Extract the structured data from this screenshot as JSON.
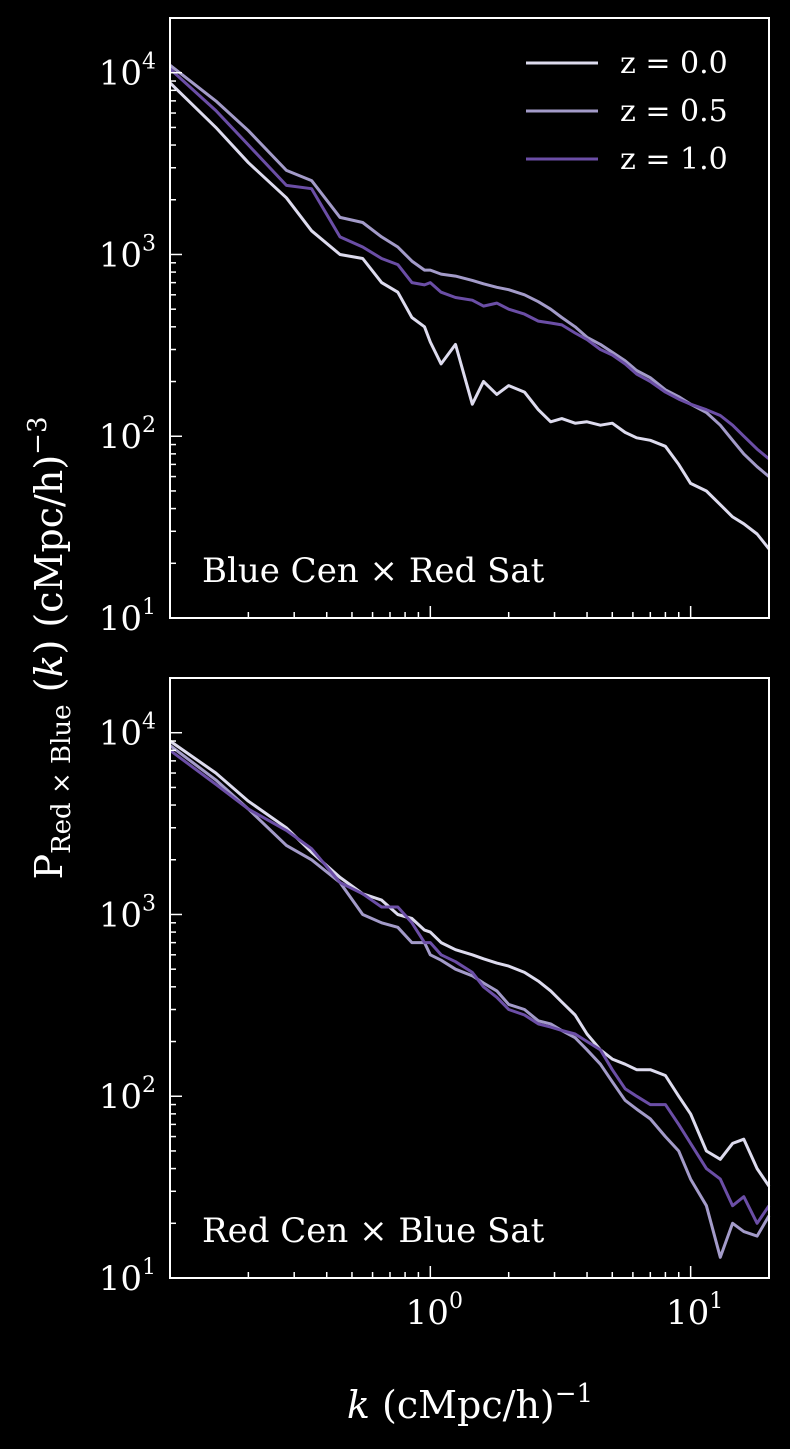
{
  "chart_data": [
    {
      "type": "line",
      "annotation": "Blue Cen × Red Sat",
      "xscale": "log",
      "yscale": "log",
      "xlim": [
        0.1,
        20
      ],
      "ylim": [
        10,
        20000
      ],
      "legend_placement": "top-right",
      "series": [
        {
          "name": "z = 0.0",
          "color": "#dddbee",
          "x": [
            0.1,
            0.15,
            0.2,
            0.28,
            0.35,
            0.45,
            0.55,
            0.65,
            0.75,
            0.85,
            0.95,
            1.0,
            1.1,
            1.25,
            1.45,
            1.6,
            1.8,
            2.0,
            2.3,
            2.6,
            2.9,
            3.2,
            3.6,
            4.0,
            4.5,
            5.0,
            5.6,
            6.2,
            7.0,
            8.0,
            9.0,
            10.0,
            11.5,
            13.0,
            14.5,
            16.0,
            18.0,
            20.0
          ],
          "y": [
            8800,
            5000,
            3200,
            2050,
            1350,
            1000,
            950,
            700,
            620,
            450,
            400,
            330,
            250,
            320,
            150,
            200,
            170,
            190,
            175,
            140,
            120,
            125,
            118,
            120,
            115,
            118,
            105,
            98,
            95,
            88,
            70,
            55,
            50,
            42,
            36,
            33,
            29,
            24
          ]
        },
        {
          "name": "z = 0.5",
          "color": "#a39bc9",
          "x": [
            0.1,
            0.15,
            0.2,
            0.28,
            0.35,
            0.45,
            0.55,
            0.65,
            0.75,
            0.85,
            0.95,
            1.0,
            1.1,
            1.25,
            1.45,
            1.6,
            1.8,
            2.0,
            2.3,
            2.6,
            2.9,
            3.2,
            3.6,
            4.0,
            4.5,
            5.0,
            5.6,
            6.2,
            7.0,
            8.0,
            9.0,
            10.0,
            11.5,
            13.0,
            14.5,
            16.0,
            18.0,
            20.0
          ],
          "y": [
            11000,
            7000,
            4800,
            2900,
            2550,
            1600,
            1500,
            1250,
            1100,
            920,
            820,
            820,
            780,
            760,
            720,
            690,
            660,
            640,
            600,
            550,
            500,
            450,
            400,
            350,
            320,
            290,
            260,
            230,
            210,
            180,
            165,
            150,
            135,
            115,
            95,
            80,
            68,
            60
          ]
        },
        {
          "name": "z = 1.0",
          "color": "#6b4ea6",
          "x": [
            0.1,
            0.15,
            0.2,
            0.28,
            0.35,
            0.45,
            0.55,
            0.65,
            0.75,
            0.85,
            0.95,
            1.0,
            1.1,
            1.25,
            1.45,
            1.6,
            1.8,
            2.0,
            2.3,
            2.6,
            2.9,
            3.2,
            3.6,
            4.0,
            4.5,
            5.0,
            5.6,
            6.2,
            7.0,
            8.0,
            9.0,
            10.0,
            11.5,
            13.0,
            14.5,
            16.0,
            18.0,
            20.0
          ],
          "y": [
            10500,
            6200,
            4000,
            2400,
            2300,
            1250,
            1100,
            950,
            880,
            700,
            680,
            700,
            620,
            580,
            560,
            520,
            540,
            500,
            470,
            430,
            420,
            410,
            370,
            340,
            300,
            280,
            250,
            220,
            200,
            175,
            160,
            150,
            140,
            130,
            115,
            100,
            85,
            75
          ]
        }
      ]
    },
    {
      "type": "line",
      "annotation": "Red Cen × Blue Sat",
      "xscale": "log",
      "yscale": "log",
      "xlim": [
        0.1,
        20
      ],
      "ylim": [
        10,
        20000
      ],
      "series": [
        {
          "name": "z = 0.0",
          "color": "#dddbee",
          "x": [
            0.1,
            0.15,
            0.2,
            0.28,
            0.35,
            0.45,
            0.55,
            0.65,
            0.75,
            0.85,
            0.95,
            1.0,
            1.1,
            1.25,
            1.45,
            1.6,
            1.8,
            2.0,
            2.3,
            2.6,
            2.9,
            3.2,
            3.6,
            4.0,
            4.5,
            5.0,
            5.6,
            6.2,
            7.0,
            8.0,
            9.0,
            10.0,
            11.5,
            13.0,
            14.5,
            16.0,
            18.0,
            20.0
          ],
          "y": [
            9000,
            6000,
            4200,
            3000,
            2200,
            1600,
            1300,
            1200,
            1000,
            950,
            820,
            800,
            700,
            640,
            600,
            570,
            540,
            520,
            480,
            430,
            380,
            330,
            280,
            220,
            180,
            160,
            150,
            140,
            140,
            130,
            100,
            80,
            50,
            45,
            55,
            58,
            40,
            32
          ]
        },
        {
          "name": "z = 0.5",
          "color": "#a39bc9",
          "x": [
            0.1,
            0.15,
            0.2,
            0.28,
            0.35,
            0.45,
            0.55,
            0.65,
            0.75,
            0.85,
            0.95,
            1.0,
            1.1,
            1.25,
            1.45,
            1.6,
            1.8,
            2.0,
            2.3,
            2.6,
            2.9,
            3.2,
            3.6,
            4.0,
            4.5,
            5.0,
            5.6,
            6.2,
            7.0,
            8.0,
            9.0,
            10.0,
            11.5,
            13.0,
            14.5,
            16.0,
            18.0,
            20.0
          ],
          "y": [
            8500,
            5500,
            3800,
            2400,
            2000,
            1500,
            1000,
            900,
            850,
            700,
            700,
            600,
            560,
            500,
            460,
            420,
            380,
            320,
            300,
            260,
            250,
            230,
            210,
            180,
            150,
            120,
            95,
            85,
            75,
            60,
            50,
            35,
            25,
            13,
            20,
            18,
            17,
            22
          ]
        },
        {
          "name": "z = 1.0",
          "color": "#6b4ea6",
          "x": [
            0.1,
            0.15,
            0.2,
            0.28,
            0.35,
            0.45,
            0.55,
            0.65,
            0.75,
            0.85,
            0.95,
            1.0,
            1.1,
            1.25,
            1.45,
            1.6,
            1.8,
            2.0,
            2.3,
            2.6,
            2.9,
            3.2,
            3.6,
            4.0,
            4.5,
            5.0,
            5.6,
            6.2,
            7.0,
            8.0,
            9.0,
            10.0,
            11.5,
            13.0,
            14.5,
            16.0,
            18.0,
            20.0
          ],
          "y": [
            8000,
            5200,
            3800,
            2900,
            2300,
            1500,
            1300,
            1100,
            1100,
            900,
            700,
            700,
            600,
            550,
            480,
            400,
            350,
            300,
            280,
            250,
            240,
            230,
            220,
            200,
            180,
            140,
            110,
            100,
            90,
            90,
            70,
            55,
            40,
            35,
            25,
            28,
            20,
            25
          ]
        }
      ]
    }
  ],
  "axes": {
    "ylabel_main": "P",
    "ylabel_sub": "Red × Blue",
    "ylabel_rest_open": " (",
    "ylabel_k": "k",
    "ylabel_rest_close": ") (cMpc/h)",
    "ylabel_exp": "−3",
    "xlabel_k": "k",
    "xlabel_rest": " (cMpc/h)",
    "xlabel_exp": "−1",
    "xticks": [
      {
        "base": "10",
        "exp": "0",
        "value": 1
      },
      {
        "base": "10",
        "exp": "1",
        "value": 10
      }
    ],
    "yticks": [
      {
        "base": "10",
        "exp": "1",
        "value": 10
      },
      {
        "base": "10",
        "exp": "2",
        "value": 100
      },
      {
        "base": "10",
        "exp": "3",
        "value": 1000
      },
      {
        "base": "10",
        "exp": "4",
        "value": 10000
      }
    ]
  }
}
